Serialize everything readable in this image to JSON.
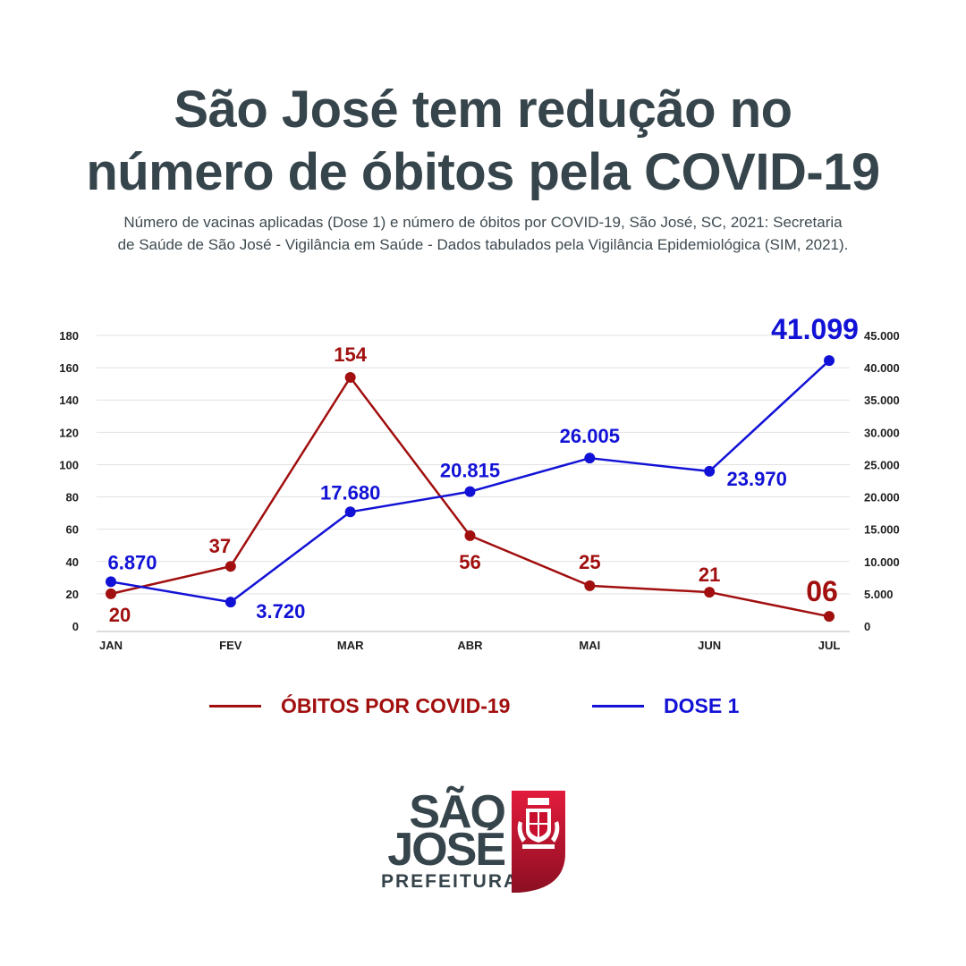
{
  "header": {
    "title_line1": "São José tem redução no",
    "title_line2": "número de óbitos pela COVID-19",
    "subtitle_line1": "Número de vacinas aplicadas (Dose 1) e número de óbitos por COVID-19, São José, SC, 2021: Secretaria",
    "subtitle_line2": "de Saúde de São José - Vigilância em Saúde - Dados tabulados pela Vigilância Epidemiológica (SIM, 2021)."
  },
  "chart_data": {
    "type": "line",
    "title": "",
    "categories": [
      "JAN",
      "FEV",
      "MAR",
      "ABR",
      "MAI",
      "JUN",
      "JUL"
    ],
    "y_left": {
      "min": 0,
      "max": 180,
      "ticks": [
        "0",
        "20",
        "40",
        "60",
        "80",
        "100",
        "120",
        "140",
        "160",
        "180"
      ]
    },
    "y_right": {
      "min": 0,
      "max": 45000,
      "ticks": [
        "0",
        "5.000",
        "10.000",
        "15.000",
        "20.000",
        "25.000",
        "30.000",
        "35.000",
        "40.000",
        "45.000"
      ]
    },
    "grid": true,
    "legend_position": "bottom",
    "series": [
      {
        "name": "ÓBITOS POR COVID-19",
        "axis": "left",
        "color": "#a10f0f",
        "values": [
          20,
          37,
          154,
          56,
          25,
          21,
          6
        ],
        "labels": [
          "20",
          "37",
          "154",
          "56",
          "25",
          "21",
          "06"
        ]
      },
      {
        "name": "DOSE 1",
        "axis": "right",
        "color": "#1212d6",
        "values": [
          6870,
          3720,
          17680,
          20815,
          26005,
          23970,
          41099
        ],
        "labels": [
          "6.870",
          "3.720",
          "17.680",
          "20.815",
          "26.005",
          "23.970",
          "41.099"
        ]
      }
    ]
  },
  "logo": {
    "line1": "SÃO",
    "line2": "JOSÉ",
    "line3": "PREFEITURA",
    "crest_color": "#c8102e",
    "crest_icon": "coat-of-arms-icon"
  }
}
